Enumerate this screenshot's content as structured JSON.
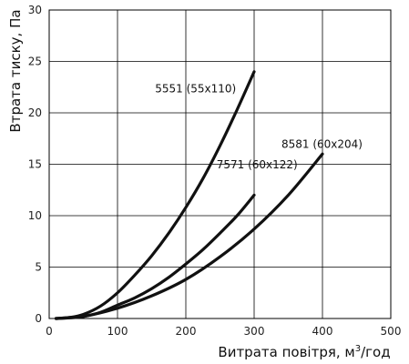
{
  "chart_data": {
    "type": "line",
    "title": "",
    "xlabel": "Витрата повітря, м",
    "xlabel_sup": "3",
    "xlabel_suffix": "/год",
    "ylabel": "Втрата тиску, Па",
    "xlim": [
      0,
      500
    ],
    "ylim": [
      0,
      30
    ],
    "xticks": [
      0,
      100,
      200,
      300,
      400,
      500
    ],
    "yticks": [
      0,
      5,
      10,
      15,
      20,
      25,
      30
    ],
    "grid": true,
    "legend": "inline labels",
    "series": [
      {
        "name": "5551 (55x110)",
        "x": [
          10,
          30,
          50,
          75,
          100,
          125,
          150,
          175,
          200,
          225,
          250,
          275,
          300
        ],
        "y": [
          0,
          0.1,
          0.4,
          1.2,
          2.5,
          4.2,
          6.1,
          8.3,
          10.8,
          13.6,
          16.8,
          20.3,
          24
        ]
      },
      {
        "name": "7571 (60x122)",
        "x": [
          10,
          30,
          50,
          75,
          100,
          125,
          150,
          175,
          200,
          225,
          250,
          275,
          300
        ],
        "y": [
          0,
          0.1,
          0.2,
          0.6,
          1.3,
          2.0,
          2.9,
          4.0,
          5.3,
          6.7,
          8.3,
          10.0,
          12
        ]
      },
      {
        "name": "8581 (60x204)",
        "x": [
          10,
          50,
          100,
          150,
          200,
          250,
          300,
          350,
          400
        ],
        "y": [
          0,
          0.2,
          1.0,
          2.2,
          3.8,
          6.0,
          8.7,
          12.0,
          16
        ]
      }
    ]
  }
}
